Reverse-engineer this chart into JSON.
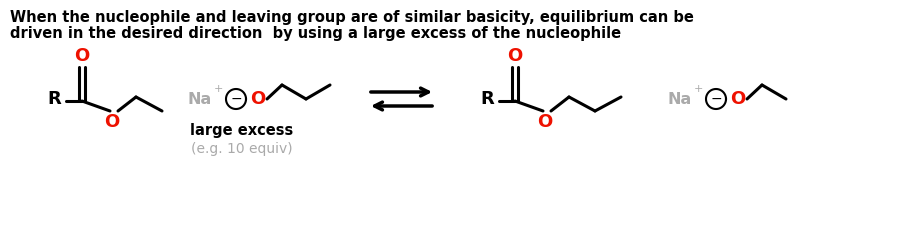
{
  "title_line1": "When the nucleophile and leaving group are of similar basicity, equilibrium can be",
  "title_line2": "driven in the desired direction  by using a large excess of the nucleophile",
  "title_fontsize": 10.5,
  "title_fontweight": "bold",
  "bg_color": "#ffffff",
  "black": "#000000",
  "red": "#ee1100",
  "gray": "#aaaaaa",
  "label_large_excess": "large excess",
  "label_equiv": "(e.g. 10 equiv)",
  "fig_width": 8.98,
  "fig_height": 2.46
}
